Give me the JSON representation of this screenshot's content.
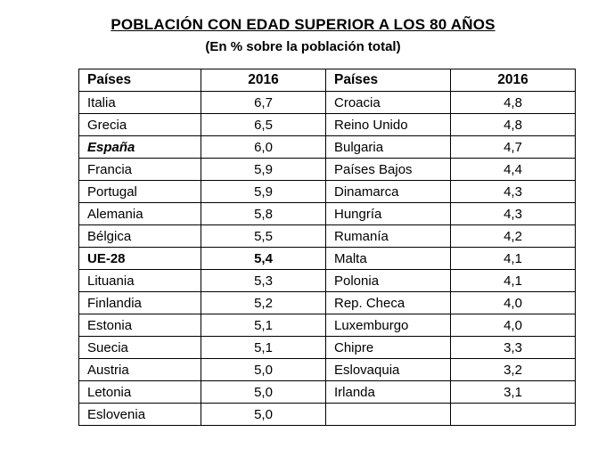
{
  "title": "POBLACIÓN CON EDAD SUPERIOR A LOS 80 AÑOS",
  "subtitle": "(En % sobre la población total)",
  "colors": {
    "background": "#ffffff",
    "text": "#000000",
    "table_border": "#000000"
  },
  "table": {
    "headers": [
      "Países",
      "2016",
      "Países",
      "2016"
    ],
    "rows": [
      {
        "left_country": "Italia",
        "left_value": "6,7",
        "right_country": "Croacia",
        "right_value": "4,8"
      },
      {
        "left_country": "Grecia",
        "left_value": "6,5",
        "right_country": "Reino Unido",
        "right_value": "4,8"
      },
      {
        "left_country": "España",
        "left_value": "6,0",
        "right_country": "Bulgaria",
        "right_value": "4,7",
        "left_country_style": "bold-italic"
      },
      {
        "left_country": "Francia",
        "left_value": "5,9",
        "right_country": "Países Bajos",
        "right_value": "4,4"
      },
      {
        "left_country": "Portugal",
        "left_value": "5,9",
        "right_country": "Dinamarca",
        "right_value": "4,3"
      },
      {
        "left_country": "Alemania",
        "left_value": "5,8",
        "right_country": "Hungría",
        "right_value": "4,3"
      },
      {
        "left_country": "Bélgica",
        "left_value": "5,5",
        "right_country": "Rumanía",
        "right_value": "4,2"
      },
      {
        "left_country": "UE-28",
        "left_value": "5,4",
        "right_country": "Malta",
        "right_value": "4,1",
        "left_country_style": "bold",
        "left_value_style": "bold"
      },
      {
        "left_country": "Lituania",
        "left_value": "5,3",
        "right_country": "Polonia",
        "right_value": "4,1"
      },
      {
        "left_country": "Finlandia",
        "left_value": "5,2",
        "right_country": "Rep. Checa",
        "right_value": "4,0"
      },
      {
        "left_country": "Estonia",
        "left_value": "5,1",
        "right_country": "Luxemburgo",
        "right_value": "4,0"
      },
      {
        "left_country": "Suecia",
        "left_value": "5,1",
        "right_country": "Chipre",
        "right_value": "3,3"
      },
      {
        "left_country": "Austria",
        "left_value": "5,0",
        "right_country": "Eslovaquia",
        "right_value": "3,2"
      },
      {
        "left_country": "Letonia",
        "left_value": "5,0",
        "right_country": "Irlanda",
        "right_value": "3,1"
      },
      {
        "left_country": "Eslovenia",
        "left_value": "5,0",
        "right_country": "",
        "right_value": ""
      }
    ]
  }
}
